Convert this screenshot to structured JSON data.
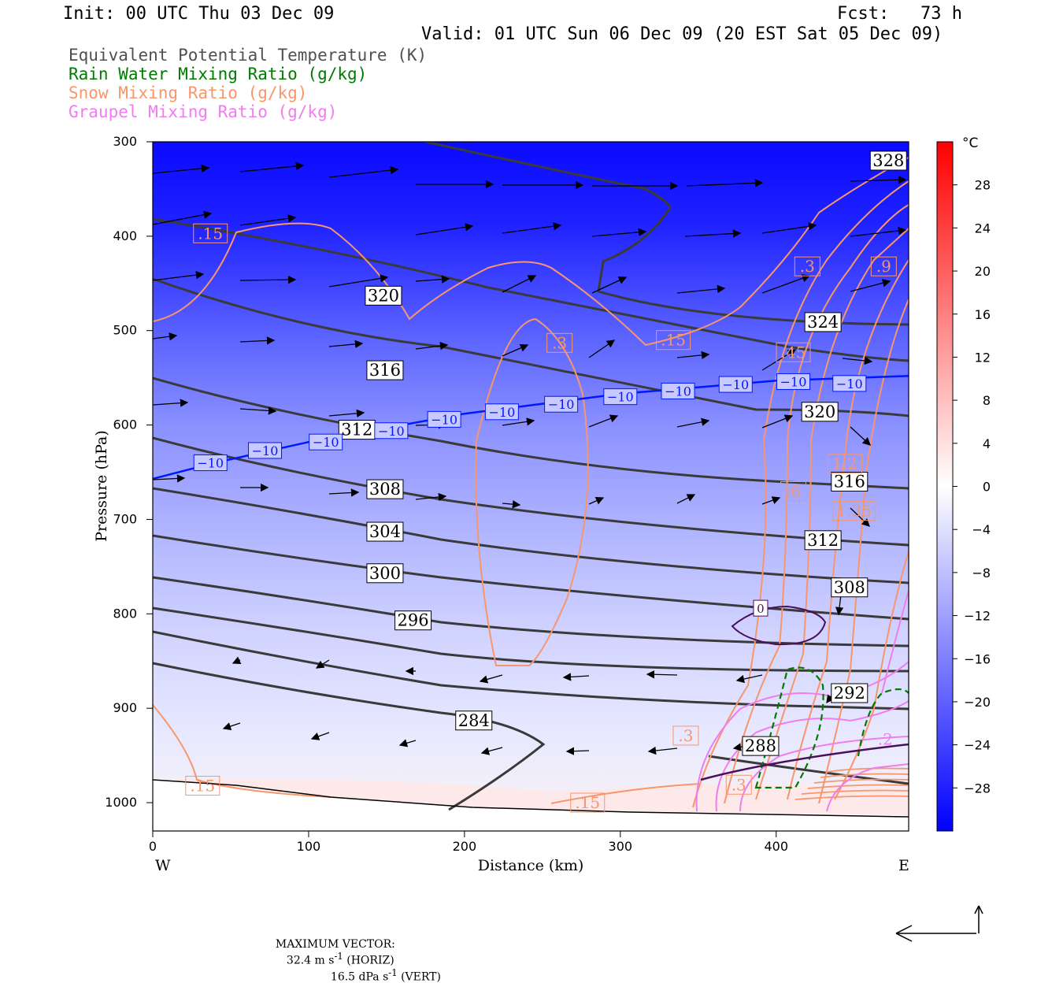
{
  "header": {
    "init": "Init: 00 UTC Thu 03 Dec 09",
    "fcst": "Fcst:   73 h",
    "valid": "Valid: 01 UTC Sun 06 Dec 09 (20 EST Sat 05 Dec 09)"
  },
  "legend": [
    {
      "label": "Equivalent Potential Temperature (K)",
      "color": "#505050"
    },
    {
      "label": "Rain Water Mixing Ratio (g/kg)",
      "color": "#007a00"
    },
    {
      "label": "Snow Mixing Ratio (g/kg)",
      "color": "#f7966b"
    },
    {
      "label": "Graupel Mixing Ratio (g/kg)",
      "color": "#f07cf0"
    }
  ],
  "chart_data": {
    "type": "cross-section",
    "xlabel": "Distance (km)",
    "ylabel": "Pressure (hPa)",
    "xlim": [
      0,
      485
    ],
    "ylim": [
      1030,
      300
    ],
    "y_scale": "linear pressure",
    "x_ticks": [
      0,
      100,
      200,
      300,
      400
    ],
    "y_ticks": [
      300,
      400,
      500,
      600,
      700,
      800,
      900,
      1000
    ],
    "x_end_labels": {
      "left": "W",
      "right": "E"
    },
    "colorbar": {
      "unit": "°C",
      "ticks": [
        28,
        24,
        20,
        16,
        12,
        8,
        4,
        0,
        -4,
        -8,
        -12,
        -16,
        -20,
        -24,
        -28
      ],
      "range": [
        -32,
        32
      ],
      "colors": {
        "cold": "#0000ff",
        "zero": "#ffffff",
        "warm": "#ff0000"
      }
    },
    "theta_e_contours": [
      {
        "value": 328,
        "label_at": [
          472,
          320
        ]
      },
      {
        "value": 324,
        "label_at": [
          430,
          491
        ]
      },
      {
        "value": 320,
        "label_at": [
          148,
          463
        ],
        "label_at2": [
          428,
          586
        ]
      },
      {
        "value": 316,
        "label_at": [
          149,
          542
        ],
        "label_at2": [
          447,
          660
        ]
      },
      {
        "value": 312,
        "label_at": [
          131,
          605
        ],
        "label_at2": [
          430,
          722
        ]
      },
      {
        "value": 308,
        "label_at": [
          149,
          668
        ],
        "label_at2": [
          447,
          772
        ]
      },
      {
        "value": 304,
        "label_at": [
          149,
          713
        ]
      },
      {
        "value": 300,
        "label_at": [
          149,
          757
        ]
      },
      {
        "value": 296,
        "label_at": [
          167,
          807
        ]
      },
      {
        "value": 292,
        "label_at": [
          447,
          884
        ]
      },
      {
        "value": 288,
        "label_at": [
          390,
          940
        ]
      },
      {
        "value": 284,
        "label_at": [
          206,
          913
        ]
      }
    ],
    "isotherm_minus10": {
      "label": "-10",
      "points": [
        [
          0,
          657
        ],
        [
          40,
          640
        ],
        [
          100,
          618
        ],
        [
          200,
          588
        ],
        [
          300,
          567
        ],
        [
          400,
          553
        ],
        [
          485,
          548
        ]
      ],
      "label_positions": [
        [
          37,
          640
        ],
        [
          72,
          627
        ],
        [
          111,
          618
        ],
        [
          153,
          606
        ],
        [
          187,
          594
        ],
        [
          224,
          586
        ],
        [
          262,
          578
        ],
        [
          300,
          570
        ],
        [
          337,
          564
        ],
        [
          374,
          557
        ],
        [
          411,
          554
        ],
        [
          447,
          556
        ]
      ]
    },
    "snow_labels": [
      {
        "text": ".15",
        "at": [
          37,
          397
        ]
      },
      {
        "text": ".3",
        "at": [
          261,
          513
        ]
      },
      {
        "text": ".15",
        "at": [
          334,
          510
        ]
      },
      {
        "text": ".3",
        "at": [
          420,
          432
        ]
      },
      {
        "text": ".9",
        "at": [
          469,
          432
        ]
      },
      {
        "text": ".45",
        "at": [
          411,
          523
        ]
      },
      {
        "text": "1.2",
        "at": [
          444,
          641
        ]
      },
      {
        "text": ".6",
        "at": [
          411,
          670
        ]
      },
      {
        "text": "1.35",
        "at": [
          450,
          691
        ]
      },
      {
        "text": ".3",
        "at": [
          342,
          929
        ]
      },
      {
        "text": ".3",
        "at": [
          376,
          981
        ]
      },
      {
        "text": ".15",
        "at": [
          32,
          982
        ]
      },
      {
        "text": ".15",
        "at": [
          279,
          1000
        ]
      }
    ],
    "zero_isotherm_label": {
      "text": "0",
      "at": [
        390,
        794
      ]
    },
    "rain_label": {
      "text": ".2",
      "at": [
        470,
        933
      ]
    },
    "vectors": {
      "max_horiz": "32.4 m s⁻¹ (HORIZ)",
      "max_vert": "16.5 dPa s⁻¹ (VERT)"
    }
  },
  "footer": {
    "prefix": "MAXIMUM VECTOR:",
    "horiz_value": "32.4 m s",
    "horiz_unit_suffix": " (HORIZ)",
    "vert_value": "16.5 dPa s",
    "vert_unit_suffix": " (VERT)",
    "exponent": "-1"
  }
}
